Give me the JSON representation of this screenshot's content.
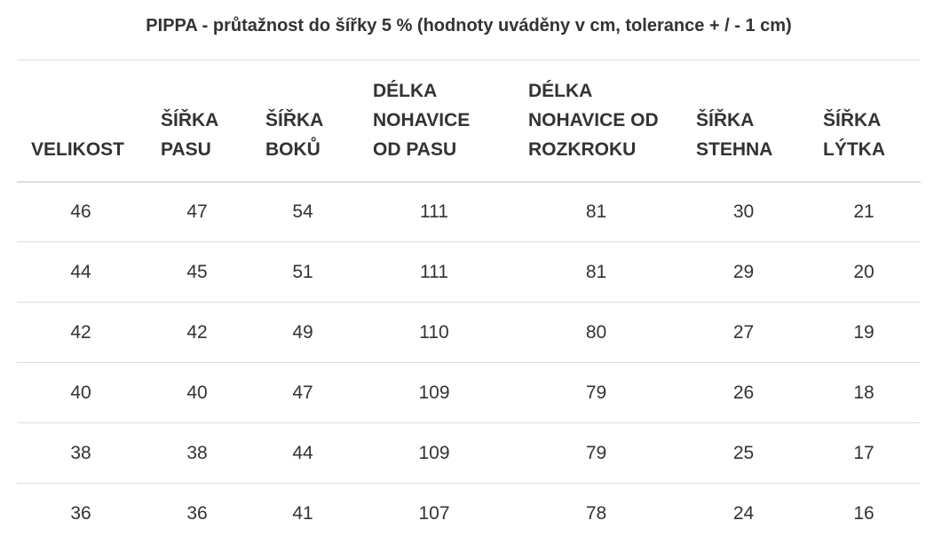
{
  "table": {
    "caption": "PIPPA - průtažnost do šířky 5 % (hodnoty uváděny v cm, tolerance + / - 1 cm)",
    "headers": [
      "VELIKOST",
      "ŠÍŘKA\nPASU",
      "ŠÍŘKA\nBOKŮ",
      "DÉLKA\nNOHAVICE\nOD PASU",
      "DÉLKA\nNOHAVICE OD\nROZKROKU",
      "ŠÍŘKA\nSTEHNA",
      "ŠÍŘKA\nLÝTKA"
    ],
    "rows": [
      [
        "46",
        "47",
        "54",
        "111",
        "81",
        "30",
        "21"
      ],
      [
        "44",
        "45",
        "51",
        "111",
        "81",
        "29",
        "20"
      ],
      [
        "42",
        "42",
        "49",
        "110",
        "80",
        "27",
        "19"
      ],
      [
        "40",
        "40",
        "47",
        "109",
        "79",
        "26",
        "18"
      ],
      [
        "38",
        "38",
        "44",
        "109",
        "79",
        "25",
        "17"
      ],
      [
        "36",
        "36",
        "41",
        "107",
        "78",
        "24",
        "16"
      ]
    ]
  }
}
